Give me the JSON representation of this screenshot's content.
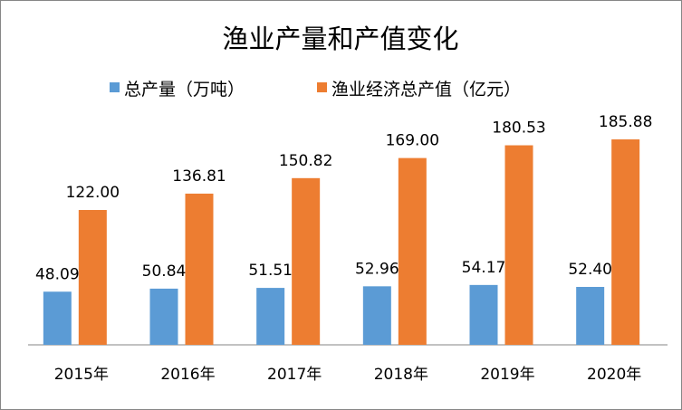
{
  "chart_data": {
    "type": "bar",
    "title": "渔业产量和产值变化",
    "categories": [
      "2015年",
      "2016年",
      "2017年",
      "2018年",
      "2019年",
      "2020年"
    ],
    "series": [
      {
        "name": "总产量（万吨）",
        "color": "#5B9BD5",
        "values": [
          48.09,
          50.84,
          51.51,
          52.96,
          54.17,
          52.4
        ],
        "labels": [
          "48.09",
          "50.84",
          "51.51",
          "52.96",
          "54.17",
          "52.40"
        ]
      },
      {
        "name": "渔业经济总产值（亿元）",
        "color": "#ED7D31",
        "values": [
          122.0,
          136.81,
          150.82,
          169.0,
          180.53,
          185.88
        ],
        "labels": [
          "122.00",
          "136.81",
          "150.82",
          "169.00",
          "180.53",
          "185.88"
        ]
      }
    ],
    "xlabel": "",
    "ylabel": "",
    "ylim": [
      0,
      200
    ],
    "grid": false,
    "legend": "top"
  }
}
